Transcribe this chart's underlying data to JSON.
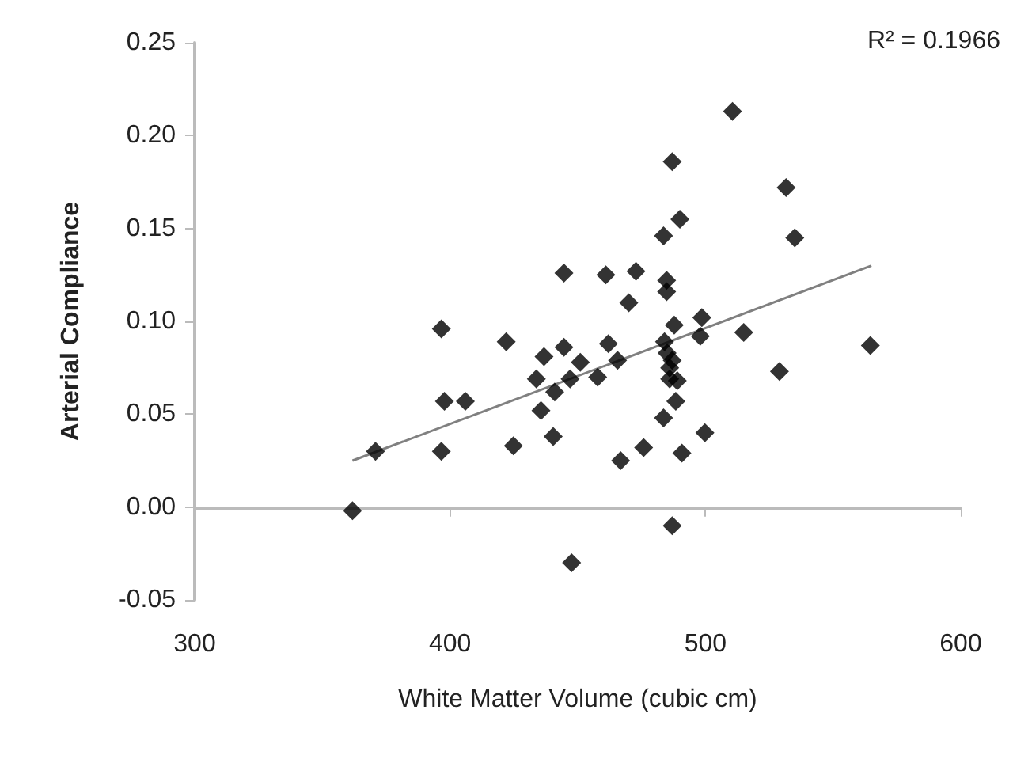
{
  "chart_data": {
    "type": "scatter",
    "xlabel": "White Matter Volume (cubic cm)",
    "ylabel": "Arterial Compliance",
    "annotations": [
      "R² = 0.1966"
    ],
    "marker": "diamond",
    "xlim": [
      300,
      600
    ],
    "xticks": [
      300,
      400,
      500,
      600
    ],
    "ylim": [
      -0.05,
      0.25
    ],
    "yticks": [
      {
        "value": -0.05,
        "label": "-0.05"
      },
      {
        "value": 0,
        "label": "0.00"
      },
      {
        "value": 0.05,
        "label": "0.05"
      },
      {
        "value": 0.1,
        "label": "0.10"
      },
      {
        "value": 0.15,
        "label": "0.15"
      },
      {
        "value": 0.2,
        "label": "0.20"
      },
      {
        "value": 0.25,
        "label": "0.25"
      }
    ],
    "series": [
      {
        "color": "#000000",
        "x": [
          444.6,
          461,
          472.8,
          470,
          396.6,
          422,
          436.8,
          444.6,
          462,
          465.6,
          451,
          510.6,
          487,
          531.6,
          490,
          483.6,
          535,
          484.8,
          484.8,
          487.8,
          498.6,
          498,
          515,
          564.6,
          484,
          487,
          529,
          433.8,
          441,
          447,
          457.8,
          397.8,
          406,
          435.6,
          440.4,
          424.8,
          396.6,
          370.8,
          466.8,
          361.8,
          447.6,
          486,
          489,
          488.4,
          483.6,
          499.8,
          475.8,
          490.8,
          487,
          486,
          485
        ],
        "values": [
          0.126,
          0.125,
          0.127,
          0.11,
          0.096,
          0.089,
          0.081,
          0.086,
          0.088,
          0.079,
          0.078,
          0.213,
          0.186,
          0.172,
          0.155,
          0.146,
          0.145,
          0.122,
          0.116,
          0.098,
          0.102,
          0.092,
          0.094,
          0.087,
          0.089,
          0.079,
          0.073,
          0.069,
          0.062,
          0.069,
          0.07,
          0.057,
          0.057,
          0.052,
          0.038,
          0.033,
          0.03,
          0.03,
          0.025,
          -0.002,
          -0.03,
          0.069,
          0.068,
          0.057,
          0.048,
          0.04,
          0.032,
          0.029,
          -0.01,
          0.075,
          0.083
        ]
      },
      {
        "type": "line",
        "color": "#808080",
        "marker": "none",
        "x": [
          361.8,
          565
        ],
        "values": [
          0.025,
          0.13
        ]
      }
    ]
  }
}
